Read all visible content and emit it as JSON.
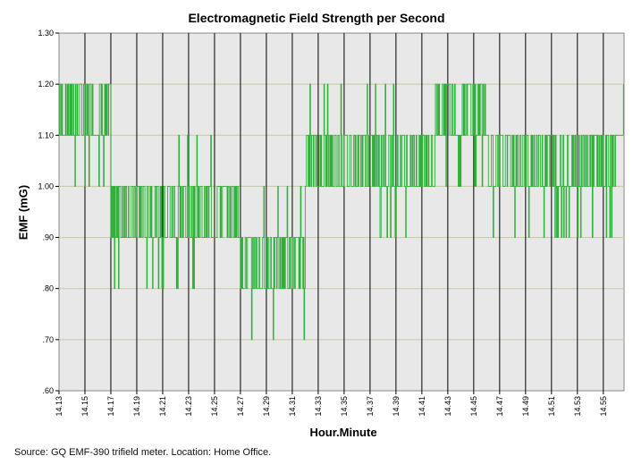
{
  "chart_data": {
    "type": "line",
    "title": "Electromagnetic Field Strength per Second",
    "xlabel": "Hour.Minute",
    "ylabel": "EMF (mG)",
    "ylim": [
      0.6,
      1.3
    ],
    "y_ticks": [
      ".60",
      ".70",
      ".80",
      ".90",
      "1.00",
      "1.10",
      "1.20",
      "1.30"
    ],
    "x_ticks": [
      "14.13",
      "14.15",
      "14.17",
      "14.19",
      "14.21",
      "14.23",
      "14.25",
      "14.27",
      "14.29",
      "14.31",
      "14.33",
      "14.35",
      "14.37",
      "14.39",
      "14.41",
      "14.43",
      "14.45",
      "14.47",
      "14.49",
      "14.51",
      "14.53",
      "14.55"
    ],
    "series": [
      {
        "name": "EMF",
        "segments": [
          {
            "start": "14.13",
            "end": "14.14",
            "values": [
              1.1,
              1.2
            ],
            "dips": [
              1.0
            ]
          },
          {
            "start": "14.14",
            "end": "14.17",
            "values": [
              1.1,
              1.2
            ],
            "dips": [
              1.0
            ]
          },
          {
            "start": "14.17",
            "end": "14.19",
            "values": [
              0.9,
              1.0
            ],
            "dips": [
              0.8
            ]
          },
          {
            "start": "14.19",
            "end": "14.23",
            "values": [
              0.9,
              1.0
            ],
            "dips": [
              0.8,
              1.1
            ]
          },
          {
            "start": "14.23",
            "end": "14.27",
            "values": [
              0.9,
              1.0
            ],
            "dips": [
              0.8,
              1.1
            ]
          },
          {
            "start": "14.27",
            "end": "14.32",
            "values": [
              0.8,
              0.9
            ],
            "dips": [
              0.7,
              1.0
            ]
          },
          {
            "start": "14.32",
            "end": "14.37",
            "values": [
              1.0,
              1.1
            ],
            "dips": [
              1.2
            ]
          },
          {
            "start": "14.37",
            "end": "14.42",
            "values": [
              1.0,
              1.1
            ],
            "dips": [
              0.9,
              1.2
            ]
          },
          {
            "start": "14.42",
            "end": "14.46",
            "values": [
              1.1,
              1.2
            ],
            "dips": [
              1.0
            ]
          },
          {
            "start": "14.46",
            "end": "14.56",
            "values": [
              1.0,
              1.1
            ],
            "dips": [
              0.9
            ]
          }
        ]
      }
    ],
    "grid": true
  },
  "source": "Source: GQ EMF-390 trifield meter. Location: Home Office.",
  "colors": {
    "line": "#2fb03a",
    "plot_bg": "#e8e8e8",
    "h_grid": "#c9c9a0",
    "v_grid": "#000000"
  }
}
